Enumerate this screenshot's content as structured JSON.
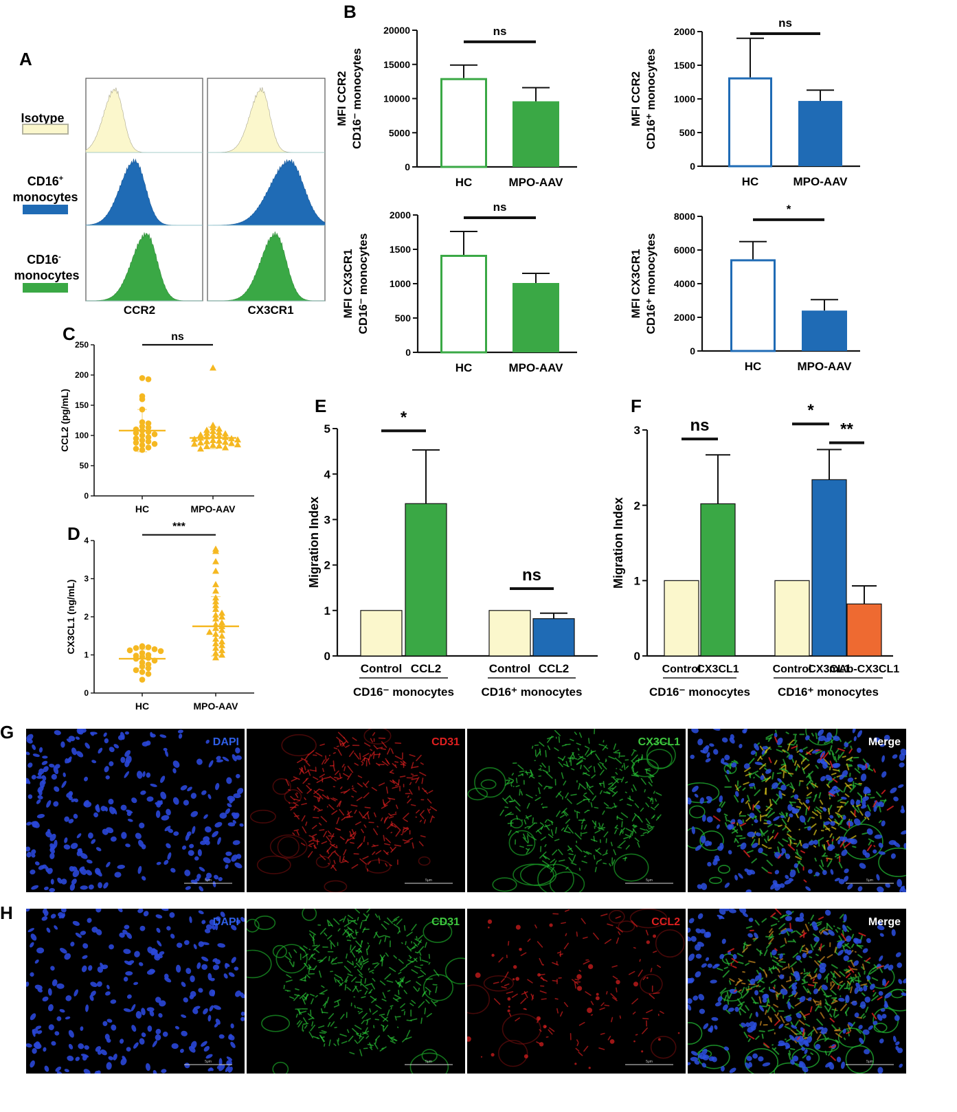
{
  "colors": {
    "green": "#3aa845",
    "blue": "#1f6bb5",
    "cream": "#fbf7cc",
    "orange": "#ee6a31",
    "yellow": "#f5b821",
    "black": "#111111"
  },
  "panel_letters": {
    "a": "A",
    "b": "B",
    "c": "C",
    "d": "D",
    "e": "E",
    "f": "F",
    "g": "G",
    "h": "H"
  },
  "panel_a": {
    "legend": [
      {
        "label": "Isotype",
        "color": "#fbf7cc"
      },
      {
        "label": "CD16⁺\nmonocytes",
        "color": "#1f6bb5"
      },
      {
        "label": "CD16⁻\nmonocytes",
        "color": "#3aa845"
      }
    ],
    "xlabels": [
      "CCR2",
      "CX3CR1"
    ]
  },
  "chart_data": [
    {
      "panel": "B1",
      "type": "bar",
      "categories": [
        "HC",
        "MPO-AAV"
      ],
      "values": [
        13000,
        9600
      ],
      "errors": [
        1900,
        2000
      ],
      "fills": [
        "open",
        "filled"
      ],
      "color": "#3aa845",
      "ylabel": "MFI CCR2\nCD16⁻ monocytes",
      "yticks": [
        0,
        5000,
        10000,
        15000,
        20000
      ],
      "ylim": [
        0,
        20000
      ],
      "sig": [
        {
          "from": 0,
          "to": 1,
          "text": "ns",
          "y": 18300
        }
      ]
    },
    {
      "panel": "B2",
      "type": "bar",
      "categories": [
        "HC",
        "MPO-AAV"
      ],
      "values": [
        1320,
        970
      ],
      "errors": [
        580,
        160
      ],
      "fills": [
        "open",
        "filled"
      ],
      "color": "#1f6bb5",
      "ylabel": "MFI CCR2\nCD16⁺ monocytes",
      "yticks": [
        0,
        500,
        1000,
        1500,
        2000
      ],
      "ylim": [
        0,
        2000
      ],
      "sig": [
        {
          "from": 0,
          "to": 1,
          "text": "ns",
          "y": 1970
        }
      ]
    },
    {
      "panel": "B3",
      "type": "bar",
      "categories": [
        "HC",
        "MPO-AAV"
      ],
      "values": [
        1420,
        1010
      ],
      "errors": [
        340,
        140
      ],
      "fills": [
        "open",
        "filled"
      ],
      "color": "#3aa845",
      "ylabel": "MFI CX3CR1\nCD16⁻ monocytes",
      "yticks": [
        0,
        500,
        1000,
        1500,
        2000
      ],
      "ylim": [
        0,
        2000
      ],
      "sig": [
        {
          "from": 0,
          "to": 1,
          "text": "ns",
          "y": 1960
        }
      ]
    },
    {
      "panel": "B4",
      "type": "bar",
      "categories": [
        "HC",
        "MPO-AAV"
      ],
      "values": [
        5450,
        2400
      ],
      "errors": [
        1050,
        650
      ],
      "fills": [
        "open",
        "filled"
      ],
      "color": "#1f6bb5",
      "ylabel": "MFI CX3CR1\nCD16⁺ monocytes",
      "yticks": [
        0,
        2000,
        4000,
        6000,
        8000
      ],
      "ylim": [
        0,
        8000
      ],
      "sig": [
        {
          "from": 0,
          "to": 1,
          "text": "*",
          "y": 7800
        }
      ]
    },
    {
      "panel": "C",
      "type": "scatter",
      "categories": [
        "HC",
        "MPO-AAV"
      ],
      "ylabel": "CCL2 (pg/mL)",
      "yticks": [
        0,
        50,
        100,
        150,
        200,
        250
      ],
      "ylim": [
        0,
        250
      ],
      "means": [
        108,
        96
      ],
      "sd": [
        35,
        18
      ],
      "points": [
        [
          195,
          193,
          165,
          160,
          143,
          122,
          120,
          115,
          113,
          110,
          108,
          106,
          104,
          102,
          100,
          97,
          95,
          92,
          90,
          88,
          86,
          84,
          80,
          78,
          76
        ],
        [
          212,
          117,
          113,
          111,
          109,
          107,
          105,
          104,
          103,
          101,
          100,
          99,
          98,
          97,
          96,
          95,
          94,
          93,
          92,
          91,
          90,
          89,
          88,
          87,
          86,
          85,
          84,
          83,
          82,
          80,
          78
        ]
      ],
      "markers": [
        "circle",
        "triangle"
      ],
      "sig": [
        {
          "from": 0,
          "to": 1,
          "text": "ns",
          "y": 250
        }
      ]
    },
    {
      "panel": "D",
      "type": "scatter",
      "categories": [
        "HC",
        "MPO-AAV"
      ],
      "ylabel": "CX3CL1 (ng/mL)",
      "yticks": [
        0,
        1,
        2,
        3,
        4
      ],
      "ylim": [
        0,
        4
      ],
      "means": [
        0.9,
        1.75
      ],
      "sd": [
        0.25,
        0.78
      ],
      "points": [
        [
          1.23,
          1.21,
          1.2,
          1.18,
          1.15,
          1.12,
          1.1,
          1.05,
          1.0,
          0.98,
          0.95,
          0.92,
          0.9,
          0.85,
          0.8,
          0.75,
          0.7,
          0.65,
          0.6,
          0.55,
          0.5,
          0.35
        ],
        [
          3.78,
          3.72,
          3.45,
          3.2,
          2.85,
          2.68,
          2.5,
          2.4,
          2.3,
          2.2,
          2.1,
          2.05,
          2.0,
          1.95,
          1.85,
          1.8,
          1.75,
          1.7,
          1.65,
          1.6,
          1.55,
          1.5,
          1.42,
          1.35,
          1.3,
          1.25,
          1.18,
          1.12,
          1.05,
          1.0,
          0.93
        ]
      ],
      "markers": [
        "circle",
        "triangle"
      ],
      "sig": [
        {
          "from": 0,
          "to": 1,
          "text": "***",
          "y": 4.15
        }
      ]
    },
    {
      "panel": "E",
      "type": "bar",
      "categories": [
        "Control",
        "CCL2",
        "Control",
        "CCL2"
      ],
      "groups": [
        {
          "label": "CD16⁻ monocytes",
          "from": 0,
          "to": 1
        },
        {
          "label": "CD16⁺ monocytes",
          "from": 2,
          "to": 3
        }
      ],
      "values": [
        1,
        3.35,
        1,
        0.82
      ],
      "errors": [
        0,
        1.18,
        0,
        0.12
      ],
      "colors": [
        "#fbf7cc",
        "#3aa845",
        "#fbf7cc",
        "#1f6bb5"
      ],
      "ylabel": "Migration Index",
      "yticks": [
        0,
        1,
        2,
        3,
        4,
        5
      ],
      "ylim": [
        0,
        5
      ],
      "sig": [
        {
          "from": 0,
          "to": 1,
          "text": "*",
          "y": 4.95
        },
        {
          "from": 2,
          "to": 3,
          "text": "ns",
          "y": 1.48
        }
      ]
    },
    {
      "panel": "F",
      "type": "bar",
      "categories": [
        "Control",
        "CX3CL1",
        "Control",
        "CX3CL1",
        "mAb-CX3CL1"
      ],
      "groups": [
        {
          "label": "CD16⁻ monocytes",
          "from": 0,
          "to": 1
        },
        {
          "label": "CD16⁺ monocytes",
          "from": 2,
          "to": 4
        }
      ],
      "values": [
        1,
        2.02,
        1,
        2.34,
        0.69
      ],
      "errors": [
        0,
        0.65,
        0,
        0.4,
        0.24
      ],
      "colors": [
        "#fbf7cc",
        "#3aa845",
        "#fbf7cc",
        "#1f6bb5",
        "#ee6a31"
      ],
      "ylabel": "Migration Index",
      "yticks": [
        0,
        1,
        2,
        3
      ],
      "ylim": [
        0,
        3
      ],
      "sig": [
        {
          "from": 0,
          "to": 1,
          "text": "ns",
          "y": 2.88
        },
        {
          "from": 2,
          "to": 3,
          "text": "*",
          "y": 3.08
        },
        {
          "from": 3,
          "to": 4,
          "text": "**",
          "y": 2.83
        }
      ]
    }
  ],
  "micro_g": [
    {
      "label": "DAPI",
      "label_color": "#2f5fe8"
    },
    {
      "label": "CD31",
      "label_color": "#e02020"
    },
    {
      "label": "CX3CL1",
      "label_color": "#3fc83f"
    },
    {
      "label": "Merge",
      "label_color": "#ffffff"
    }
  ],
  "micro_h": [
    {
      "label": "DAPI",
      "label_color": "#2f5fe8"
    },
    {
      "label": "CD31",
      "label_color": "#3fc83f"
    },
    {
      "label": "CCL2",
      "label_color": "#e02020"
    },
    {
      "label": "Merge",
      "label_color": "#ffffff"
    }
  ],
  "scale_label": "5μm"
}
